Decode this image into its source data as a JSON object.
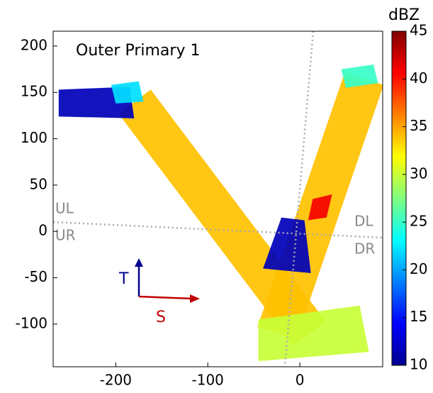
{
  "chart_data": {
    "type": "swath-map",
    "title": "Outer Primary 1",
    "xlim": [
      -268,
      90
    ],
    "ylim": [
      -146,
      216
    ],
    "xticks": [
      -200,
      -100,
      0
    ],
    "yticks": [
      -100,
      -50,
      0,
      50,
      100,
      150,
      200
    ],
    "colorbar": {
      "label": "dBZ",
      "lim": [
        10,
        45
      ],
      "ticks": [
        10,
        15,
        20,
        25,
        30,
        35,
        40,
        45
      ]
    },
    "quadrant_labels": [
      "UL",
      "UR",
      "DL",
      "DR"
    ],
    "arrow_labels": [
      "T",
      "S"
    ],
    "swaths": [
      {
        "x": [
          -197,
          -162,
          28,
          -7
        ],
        "y": [
          127,
          153,
          -97,
          -123
        ],
        "value": 34
      },
      {
        "x": [
          49,
          91,
          -4,
          -46
        ],
        "y": [
          172,
          158,
          -117,
          -103
        ],
        "value": 34
      },
      {
        "x": [
          -262,
          -185,
          -180,
          -262
        ],
        "y": [
          153,
          156,
          122,
          124
        ],
        "value": 12
      },
      {
        "x": [
          -20,
          5,
          12,
          -40
        ],
        "y": [
          15,
          12,
          -45,
          -40
        ],
        "value": 12
      },
      {
        "x": [
          14,
          35,
          29,
          9
        ],
        "y": [
          35,
          40,
          15,
          12
        ],
        "value": 41
      },
      {
        "x": [
          -45,
          65,
          75,
          -45
        ],
        "y": [
          -95,
          -80,
          -130,
          -140
        ],
        "value": 30
      },
      {
        "x": [
          45,
          80,
          85,
          50
        ],
        "y": [
          175,
          180,
          160,
          155
        ],
        "value": 25
      },
      {
        "x": [
          -205,
          -175,
          -170,
          -200
        ],
        "y": [
          158,
          162,
          140,
          138
        ],
        "value": 22
      }
    ]
  }
}
